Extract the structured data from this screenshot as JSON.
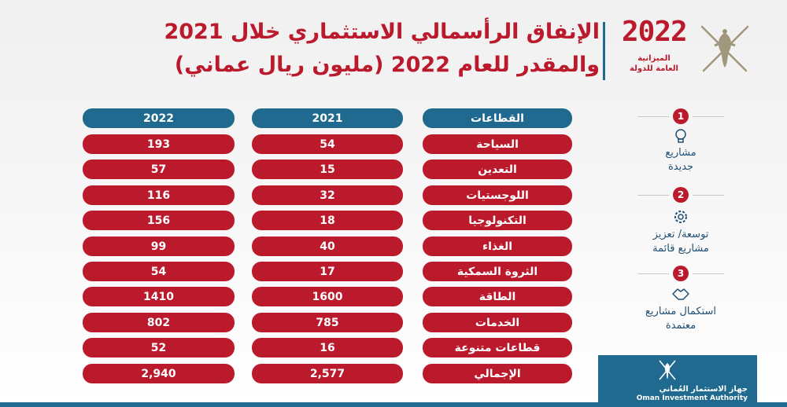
{
  "title": {
    "line1": "الإنفاق الرأسمالي الاستثماري خلال 2021",
    "line2": "والمقدر للعام 2022 (مليون ريال عماني)"
  },
  "logo": {
    "year": "2022",
    "line1": "الميزانية",
    "line2": "العامة للدولة"
  },
  "table": {
    "headers": {
      "sectors": "القطاعات",
      "y2021": "2021",
      "y2022": "2022"
    },
    "rows": [
      {
        "sector": "السياحة",
        "y2021": "54",
        "y2022": "193"
      },
      {
        "sector": "التعدين",
        "y2021": "15",
        "y2022": "57"
      },
      {
        "sector": "اللوجستيات",
        "y2021": "32",
        "y2022": "116"
      },
      {
        "sector": "التكنولوجيا",
        "y2021": "18",
        "y2022": "156"
      },
      {
        "sector": "الغذاء",
        "y2021": "40",
        "y2022": "99"
      },
      {
        "sector": "الثروة السمكية",
        "y2021": "17",
        "y2022": "54"
      },
      {
        "sector": "الطاقة",
        "y2021": "1600",
        "y2022": "1410"
      },
      {
        "sector": "الخدمات",
        "y2021": "785",
        "y2022": "802"
      },
      {
        "sector": "قطاعات متنوعة",
        "y2021": "16",
        "y2022": "52"
      },
      {
        "sector": "الإجمالي",
        "y2021": "2,577",
        "y2022": "2,940"
      }
    ]
  },
  "steps": [
    {
      "num": "1",
      "line1": "مشاريع",
      "line2": "جديدة",
      "icon": "lightbulb-icon"
    },
    {
      "num": "2",
      "line1": "توسعة/ تعزيز",
      "line2": "مشاريع قائمة",
      "icon": "gear-icon"
    },
    {
      "num": "3",
      "line1": "استكمال مشاريع",
      "line2": "معتمدة",
      "icon": "handshake-icon"
    }
  ],
  "footer": {
    "name_ar": "جهاز الاستثمار العُماني",
    "name_en": "Oman Investment Authority"
  },
  "colors": {
    "red": "#bb1a2c",
    "blue": "#1f6a8e"
  }
}
